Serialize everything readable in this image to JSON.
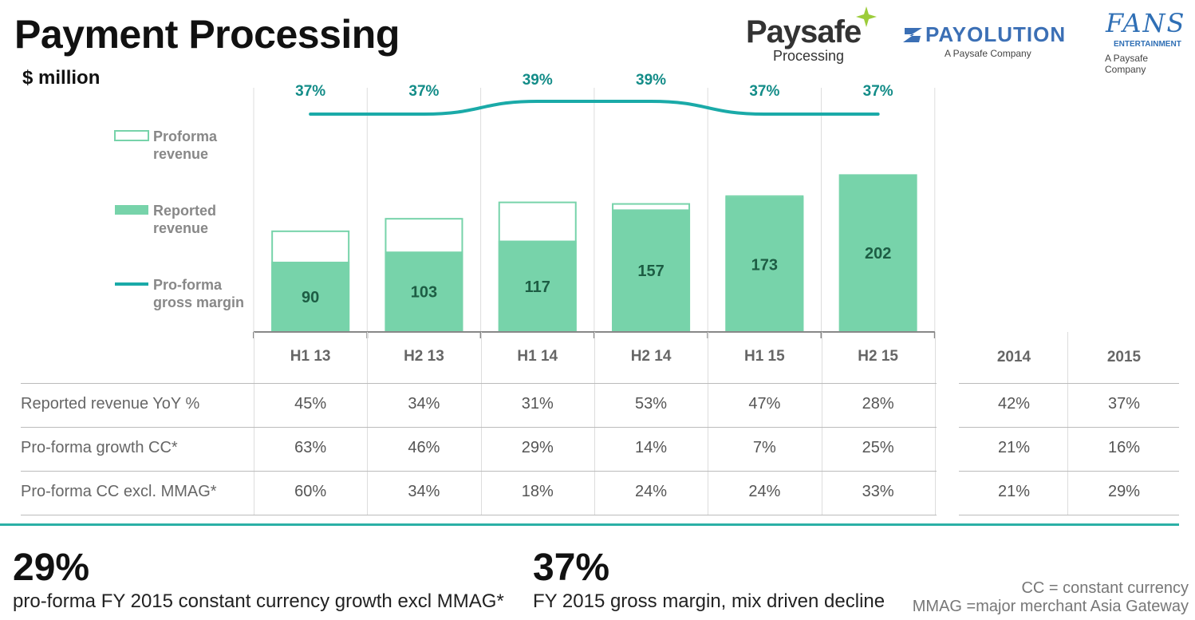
{
  "title": "Payment Processing",
  "unit": "$ million",
  "logos": {
    "paysafe": {
      "name": "Paysafe",
      "sub": "Processing",
      "icon": "paysafe-star-icon"
    },
    "payolution": {
      "name": "PAYOLUTION",
      "sub": "A Paysafe Company",
      "icon": "payolution-z-icon"
    },
    "fans": {
      "name": "FANS",
      "entertainment": "ENTERTAINMENT",
      "sub": "A Paysafe Company"
    }
  },
  "colors": {
    "reported": "#77d3aa",
    "proforma_outline": "#77d3aa",
    "margin_line": "#1aaaa8",
    "margin_label": "#138c88",
    "bar_label": "#1d5d44",
    "accent_rule": "#2bb0a6"
  },
  "chart_data": {
    "type": "bar",
    "categories": [
      "H1 13",
      "H2 13",
      "H1 14",
      "H2 14",
      "H1 15",
      "H2 15"
    ],
    "series": [
      {
        "name": "Reported revenue",
        "values": [
          90,
          103,
          117,
          157,
          173,
          202
        ]
      },
      {
        "name": "Proforma revenue",
        "values": [
          130,
          146,
          167,
          165,
          175,
          202
        ]
      },
      {
        "name": "Pro-forma gross margin",
        "values": [
          37,
          37,
          39,
          39,
          37,
          37
        ],
        "labels": [
          "37%",
          "37%",
          "39%",
          "39%",
          "37%",
          "37%"
        ]
      }
    ],
    "legend": [
      {
        "label": "Proforma revenue",
        "line1": "Proforma",
        "line2": "revenue"
      },
      {
        "label": "Reported revenue",
        "line1": "Reported",
        "line2": "revenue"
      },
      {
        "label": "Pro-forma gross margin",
        "line1": "Pro-forma",
        "line2": "gross margin"
      }
    ],
    "legend_position": "left",
    "ylim": [
      0,
      230
    ]
  },
  "table": {
    "headers": [
      "H1 13",
      "H2 13",
      "H1 14",
      "H2 14",
      "H1 15",
      "H2 15"
    ],
    "fy_headers": [
      "2014",
      "2015"
    ],
    "rows": [
      {
        "label": "Reported revenue YoY %",
        "values": [
          "45%",
          "34%",
          "31%",
          "53%",
          "47%",
          "28%"
        ],
        "fy": [
          "42%",
          "37%"
        ]
      },
      {
        "label": "Pro-forma growth CC*",
        "values": [
          "63%",
          "46%",
          "29%",
          "14%",
          "7%",
          "25%"
        ],
        "fy": [
          "21%",
          "16%"
        ]
      },
      {
        "label": "Pro-forma CC excl. MMAG*",
        "values": [
          "60%",
          "34%",
          "18%",
          "24%",
          "24%",
          "33%"
        ],
        "fy": [
          "21%",
          "29%"
        ]
      }
    ]
  },
  "kpis": [
    {
      "value": "29%",
      "label": "pro-forma FY 2015 constant currency growth excl MMAG*"
    },
    {
      "value": "37%",
      "label": "FY 2015 gross margin, mix driven decline"
    }
  ],
  "footnotes": [
    "CC = constant currency",
    "MMAG =major merchant Asia Gateway"
  ]
}
